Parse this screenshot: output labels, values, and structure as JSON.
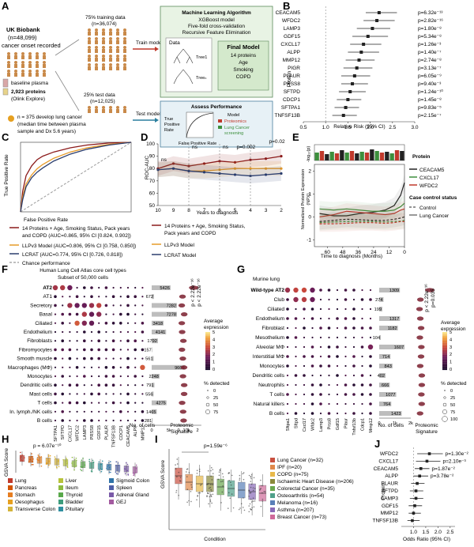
{
  "panelA": {
    "letter": "A",
    "cohort": [
      "UK Biobank",
      "(n=48,099)",
      "cancer onset recorded"
    ],
    "legend_baseline": "baseline plasma",
    "legend_proteins": [
      "2,923 proteins",
      "(Olink Explore)"
    ],
    "training": [
      "75% training data",
      "(n=36,074)"
    ],
    "testing": [
      "25% test data",
      "(n=12,025)"
    ],
    "train_label": "Train model",
    "test_label": "Test model",
    "ml_title": "Machine Learning Algorithm",
    "ml_lines": [
      "XGBoost model",
      "Five-fold cross-validation",
      "Recursive Feature Elimination"
    ],
    "data_label": "Data",
    "tree1": "Tree1",
    "treen": "Treeₙ",
    "final_title": "Final Model",
    "final_lines": [
      "14 proteins",
      "Age",
      "Smoking",
      "COPD"
    ],
    "perf_title": "Assess Performance",
    "perf_y": [
      "True",
      "Positive",
      "Rate"
    ],
    "perf_x": "False Positive Rate",
    "perf_legend_title": "Model",
    "perf_legend": [
      "Proteomics",
      "Lung Cancer",
      "screening"
    ],
    "footnote": [
      "n = 375 develop lung cancer",
      "(median time between plasma",
      "sample and Dx 5.6 years)"
    ]
  },
  "panelB": {
    "letter": "B",
    "ylabel": "Protein",
    "xlabel": "Relative Risk (95% CI)",
    "xticks": [
      "0.5",
      "1.0",
      "1.5",
      "2.0",
      "2.5",
      "3.0"
    ]
  },
  "panelC": {
    "letter": "C",
    "ylabel": "True Positive Rate",
    "xlabel": "False Positive Rate",
    "legend": [
      "14 Proteins + Age, Smoking Status, Pack years",
      "and COPD (AUC=0.865, 95% CI [0.824, 0.902])",
      "LLPv3 Model (AUC=0.806, 95% CI [0.758, 0.850])",
      "LCRAT (AUC=0.774, 95% CI [0.726, 0.818])",
      "Chance performance"
    ]
  },
  "panelD": {
    "letter": "D",
    "ylabel": "ROC-AUC",
    "xlabel": "Years to diagnosis",
    "xticks": [
      "10",
      "9",
      "8",
      "7",
      "6",
      "5",
      "4",
      "3",
      "2"
    ],
    "yticks": [
      "100",
      "90",
      "80",
      "70",
      "60",
      "50"
    ],
    "annotations": [
      "ns",
      "ns",
      "ns",
      "p=0.002",
      "p=0.02"
    ],
    "legend": [
      "14 Proteins + Age, Smoking Status,",
      "Pack years and COPD",
      "LLPv3 Model",
      "LCRAT Model"
    ]
  },
  "panelE": {
    "letter": "E",
    "ylabel": [
      "Normalized Protein Expression",
      "(NPX)"
    ],
    "xlabel": "Time to diagnosis (Months)",
    "xticks": [
      "60",
      "48",
      "36",
      "24",
      "12",
      "0"
    ],
    "yticks": [
      "2",
      "1",
      "0",
      "-1"
    ],
    "top_ylabel": "-log₁₀(p)",
    "legend_protein_title": "Protein",
    "proteins": [
      "CEACAM5",
      "CXCL17",
      "WFDC2"
    ],
    "legend_status_title": "Case control status",
    "statuses": [
      "Control",
      "Lung Cancer"
    ]
  },
  "panelF": {
    "letter": "F",
    "title": [
      "Human Lung Cell Atlas core cell types",
      "Subset of 50,000 cells"
    ],
    "cells": [
      "AT2",
      "AT1",
      "Secretory",
      "Basal",
      "Ciliated",
      "Endothelium",
      "Fibroblasts",
      "Fibromyocytes",
      "Smooth muscle",
      "Macrophages (MΦ)",
      "Monocytes",
      "Dendritic cells",
      "Mast cells",
      "T cells",
      "In. lymph./NK cells",
      "B cells"
    ],
    "genes": [
      "SFTPA1",
      "SFTPD",
      "CXCL17",
      "WFDC2",
      "LAMP3",
      "PRSS8",
      "GDF15",
      "PLAUR",
      "TNFSF13B",
      "CDCP1",
      "CEACAM5",
      "ALPP",
      "MMP12"
    ],
    "counts": [
      "5426",
      "672",
      "7282",
      "7278",
      "3418",
      "4141",
      "1792",
      "157",
      "561",
      "9666",
      "2248",
      "791",
      "556",
      "4275",
      "1465",
      "281"
    ],
    "counts_xticks": [
      "0",
      "5k",
      "10k"
    ],
    "counts_xlabel": "No. of cells",
    "sig_xlabel": [
      "Proteomic",
      "Signature"
    ],
    "sig_xticks": [
      "0",
      "1",
      "2"
    ],
    "pvals": [
      "p < 2.22e⁻¹⁶",
      "p < 2.22e⁻¹⁶"
    ],
    "legend_avg_title": [
      "Average",
      "expression"
    ],
    "legend_avg_ticks": [
      "5",
      "4",
      "3",
      "2",
      "1",
      "0"
    ],
    "legend_pct_title": "% detected",
    "legend_pct": [
      "0",
      "25",
      "50",
      "75"
    ]
  },
  "panelG": {
    "letter": "G",
    "title": "Murine lung",
    "cells": [
      "Wild-type AT2",
      "Club",
      "Ciliated",
      "Endothelium",
      "Fibroblast",
      "Mesothelium",
      "Alveolar MΦ",
      "Interstitial MΦ",
      "Monocytes",
      "Dendritic cells",
      "Neutrophils",
      "T cells",
      "Natural killers",
      "B cells"
    ],
    "genes": [
      "Sftpa1",
      "Sftpd",
      "Cxcl17",
      "Wfdc2",
      "Lamp3",
      "Prss8",
      "Gdf15",
      "Plaur",
      "Tnfsf13b",
      "Cdcp1",
      "Mmp12"
    ],
    "counts": [
      "1309",
      "274",
      "199",
      "1317",
      "1182",
      "104",
      "1607",
      "714",
      "843",
      "402",
      "666",
      "1077",
      "764",
      "1423"
    ],
    "counts_xticks": [
      "0",
      "1k",
      "2k"
    ],
    "counts_xlabel": "No. of cells",
    "sig_xlabel": [
      "Proteomic",
      "Signature"
    ],
    "pvals": [
      "p < 2.22e⁻¹⁶",
      "p=0.035"
    ],
    "legend_avg_title": [
      "Average",
      "expression"
    ],
    "legend_avg_ticks": [
      "5",
      "4",
      "3",
      "2",
      "1",
      "0"
    ],
    "legend_pct_title": "% detected",
    "legend_pct": [
      "0",
      "25",
      "50",
      "75",
      "100"
    ]
  },
  "panelH": {
    "letter": "H",
    "ylabel": "GSVA Score",
    "pval": "p = 6.07e⁻¹⁰",
    "tissues": [
      "Lung",
      "Pancreas",
      "Stomach",
      "Oesophagus",
      "Transverse Colon",
      "Liver",
      "Ileum",
      "Thyroid",
      "Bladder",
      "Pituitary",
      "Sigmoid Colon",
      "Spleen",
      "Adrenal Gland",
      "GEJ"
    ],
    "colors": [
      "#c0392b",
      "#d35400",
      "#e67e22",
      "#e6a020",
      "#d4b43a",
      "#b7c23a",
      "#8dbb3e",
      "#58a84a",
      "#3c9c7c",
      "#2e8fa0",
      "#2f73a8",
      "#4f5fa8",
      "#7a5aa8",
      "#a35aa0"
    ]
  },
  "panelI": {
    "letter": "I",
    "ylabel": "GSVA Score",
    "xlabel": "Condition",
    "pval": "p=1.59e⁻⁶",
    "conditions": [
      "Lung Cancer (n=32)",
      "IPF (n=20)",
      "COPD (n=75)",
      "Ischaemic Heart Disease (n=206)",
      "Colorectal Cancer (n=35)",
      "Osteoarthritis (n=54)",
      "Melanoma (n=16)",
      "Asthma (n=207)",
      "Breast Cancer (n=73)"
    ],
    "colors": [
      "#c9503f",
      "#e0884a",
      "#e8b94a",
      "#8a8a3a",
      "#6aa84f",
      "#4fa08a",
      "#5a7fb8",
      "#8a6ab8",
      "#d06a9a"
    ]
  },
  "panelJ": {
    "letter": "J",
    "ylabel": "Protein",
    "xlabel": "Odds Ratio (95% CI)",
    "xticks": [
      "1.0",
      "1.5",
      "2.0",
      "2.5"
    ],
    "yticks": [
      "0.5",
      "1.0",
      "1.5",
      "2.0"
    ]
  },
  "chart_data": [
    {
      "type": "scatter",
      "panel": "B",
      "xlabel": "Relative Risk (95% CI)",
      "ylabel": "Protein",
      "xlim": [
        0.5,
        3.0
      ],
      "series": [
        {
          "protein": "CEACAM5",
          "rr": 2.2,
          "ci": [
            1.9,
            2.6
          ],
          "p": "p=6.32e⁻¹³"
        },
        {
          "protein": "WFDC2",
          "rr": 2.15,
          "ci": [
            1.85,
            2.55
          ],
          "p": "p=2.82e⁻¹⁶"
        },
        {
          "protein": "LAMP3",
          "rr": 2.05,
          "ci": [
            1.7,
            2.45
          ],
          "p": "p=1.80e⁻⁸"
        },
        {
          "protein": "GDF15",
          "rr": 1.95,
          "ci": [
            1.6,
            2.4
          ],
          "p": "p=5.34e⁻⁸"
        },
        {
          "protein": "CXCL17",
          "rr": 1.85,
          "ci": [
            1.55,
            2.25
          ],
          "p": "p=1.26e⁻³"
        },
        {
          "protein": "ALPP",
          "rr": 1.8,
          "ci": [
            1.5,
            2.2
          ],
          "p": "p=1.40e⁻⁷"
        },
        {
          "protein": "MMP12",
          "rr": 1.75,
          "ci": [
            1.45,
            2.1
          ],
          "p": "p=2.74e⁻⁸"
        },
        {
          "protein": "PIGR",
          "rr": 1.7,
          "ci": [
            1.4,
            2.05
          ],
          "p": "p=3.13e⁻⁷"
        },
        {
          "protein": "PLAUR",
          "rr": 1.65,
          "ci": [
            1.35,
            2.0
          ],
          "p": "p=6.05e⁻⁹"
        },
        {
          "protein": "PRSS8",
          "rr": 1.6,
          "ci": [
            1.35,
            1.95
          ],
          "p": "p=9.40e⁻³"
        },
        {
          "protein": "SFTPD",
          "rr": 1.55,
          "ci": [
            1.3,
            1.9
          ],
          "p": "p=1.24e⁻¹⁰"
        },
        {
          "protein": "CDCP1",
          "rr": 1.5,
          "ci": [
            1.25,
            1.8
          ],
          "p": "p=1.45e⁻⁸"
        },
        {
          "protein": "SFTPA1",
          "rr": 1.45,
          "ci": [
            1.2,
            1.75
          ],
          "p": "p=9.83e⁻⁵"
        },
        {
          "protein": "TNFSF13B",
          "rr": 1.4,
          "ci": [
            1.15,
            1.7
          ],
          "p": "p=2.15e⁻⁷"
        }
      ]
    },
    {
      "type": "line",
      "panel": "C",
      "xlabel": "False Positive Rate",
      "ylabel": "True Positive Rate",
      "xlim": [
        0,
        1
      ],
      "ylim": [
        0,
        1
      ],
      "series": [
        {
          "name": "14 Proteins + Age, Smoking Status, Pack years and COPD",
          "color": "#8b1a1a",
          "x": [
            0,
            0.02,
            0.05,
            0.1,
            0.15,
            0.2,
            0.3,
            0.45,
            0.6,
            0.8,
            1.0
          ],
          "y": [
            0,
            0.3,
            0.52,
            0.66,
            0.75,
            0.8,
            0.86,
            0.92,
            0.96,
            0.99,
            1.0
          ]
        },
        {
          "name": "LLPv3 Model",
          "color": "#e69a28",
          "x": [
            0,
            0.02,
            0.05,
            0.1,
            0.15,
            0.2,
            0.3,
            0.45,
            0.6,
            0.8,
            1.0
          ],
          "y": [
            0,
            0.22,
            0.4,
            0.53,
            0.62,
            0.68,
            0.77,
            0.86,
            0.92,
            0.97,
            1.0
          ]
        },
        {
          "name": "LCRAT",
          "color": "#2a3d6e",
          "x": [
            0,
            0.02,
            0.05,
            0.1,
            0.15,
            0.2,
            0.3,
            0.45,
            0.6,
            0.8,
            1.0
          ],
          "y": [
            0,
            0.18,
            0.36,
            0.49,
            0.57,
            0.63,
            0.73,
            0.83,
            0.9,
            0.96,
            1.0
          ]
        }
      ]
    },
    {
      "type": "line",
      "panel": "D",
      "xlabel": "Years to diagnosis",
      "ylabel": "ROC-AUC",
      "ylim": [
        50,
        100
      ],
      "x": [
        10,
        9,
        8,
        7,
        6,
        5,
        4,
        3,
        2
      ],
      "series": [
        {
          "name": "14 Proteins + Age, Smoking Status, Pack years and COPD",
          "color": "#8b1a1a",
          "values": [
            80,
            84,
            82,
            84,
            86,
            85,
            87,
            88,
            90
          ]
        },
        {
          "name": "LLPv3 Model",
          "color": "#e69a28",
          "values": [
            79,
            80,
            78,
            78,
            79,
            80,
            80,
            80,
            80
          ]
        },
        {
          "name": "LCRAT Model",
          "color": "#2a3d6e",
          "values": [
            79,
            80,
            78,
            77,
            76,
            75,
            74,
            75,
            76
          ]
        }
      ]
    },
    {
      "type": "line",
      "panel": "E",
      "xlabel": "Time to diagnosis (Months)",
      "ylabel": "Normalized Protein Expression (NPX)",
      "xlim": [
        70,
        0
      ],
      "ylim": [
        -1.3,
        2.3
      ],
      "series": [
        {
          "name": "CEACAM5 Lung Cancer",
          "color": "#222222",
          "dash": false,
          "x": [
            66,
            55,
            45,
            35,
            25,
            15,
            8,
            3,
            0
          ],
          "y": [
            0.15,
            0.05,
            0.05,
            0.15,
            0.2,
            0.3,
            0.5,
            0.95,
            1.5
          ]
        },
        {
          "name": "CXCL17 Lung Cancer",
          "color": "#3d8f3d",
          "dash": false,
          "x": [
            66,
            55,
            45,
            35,
            25,
            15,
            8,
            3,
            0
          ],
          "y": [
            0.35,
            0.3,
            0.35,
            0.3,
            0.25,
            0.25,
            0.3,
            0.45,
            0.6
          ]
        },
        {
          "name": "WFDC2 Lung Cancer",
          "color": "#c0392b",
          "dash": false,
          "x": [
            66,
            55,
            45,
            35,
            25,
            15,
            8,
            3,
            0
          ],
          "y": [
            0.0,
            0.1,
            0.25,
            0.2,
            0.15,
            0.1,
            0.15,
            0.3,
            0.35
          ]
        },
        {
          "name": "CEACAM5 Control",
          "color": "#222222",
          "dash": true,
          "x": [
            66,
            55,
            45,
            35,
            25,
            15,
            8,
            3,
            0
          ],
          "y": [
            -0.2,
            -0.15,
            -0.1,
            -0.12,
            -0.15,
            -0.15,
            -0.1,
            -0.05,
            0.0
          ]
        },
        {
          "name": "CXCL17 Control",
          "color": "#3d8f3d",
          "dash": true,
          "x": [
            66,
            55,
            45,
            35,
            25,
            15,
            8,
            3,
            0
          ],
          "y": [
            -0.25,
            -0.22,
            -0.2,
            -0.2,
            -0.2,
            -0.22,
            -0.2,
            -0.18,
            -0.15
          ]
        },
        {
          "name": "WFDC2 Control",
          "color": "#c0392b",
          "dash": true,
          "x": [
            66,
            55,
            45,
            35,
            25,
            15,
            8,
            3,
            0
          ],
          "y": [
            -0.3,
            -0.3,
            -0.28,
            -0.25,
            -0.25,
            -0.28,
            -0.25,
            -0.2,
            -0.2
          ]
        }
      ]
    },
    {
      "type": "scatter",
      "panel": "J",
      "xlabel": "Odds Ratio (95% CI)",
      "ylabel": "Protein",
      "xlim": [
        0.5,
        2.7
      ],
      "series": [
        {
          "protein": "WFDC2",
          "or": 1.65,
          "ci": [
            1.15,
            2.2
          ],
          "p": "p=1.30e⁻²"
        },
        {
          "protein": "CXCL17",
          "or": 1.55,
          "ci": [
            1.1,
            2.1
          ],
          "p": "p=2.10e⁻³"
        },
        {
          "protein": "CEACAM5",
          "or": 1.3,
          "ci": [
            1.05,
            1.65
          ],
          "p": "p=1.87e⁻²"
        },
        {
          "protein": "ALPP",
          "or": 1.25,
          "ci": [
            1.0,
            1.6
          ],
          "p": "p=3.78e⁻²"
        },
        {
          "protein": "PLAUR",
          "or": 1.15,
          "ci": [
            0.9,
            1.45
          ],
          "p": ""
        },
        {
          "protein": "SFTPD",
          "or": 1.1,
          "ci": [
            0.85,
            1.4
          ],
          "p": ""
        },
        {
          "protein": "LAMP3",
          "or": 1.1,
          "ci": [
            0.85,
            1.4
          ],
          "p": ""
        },
        {
          "protein": "GDF15",
          "or": 1.05,
          "ci": [
            0.8,
            1.35
          ],
          "p": ""
        },
        {
          "protein": "MMP12",
          "or": 1.0,
          "ci": [
            0.8,
            1.3
          ],
          "p": ""
        },
        {
          "protein": "TNFSF13B",
          "or": 0.95,
          "ci": [
            0.75,
            1.25
          ],
          "p": ""
        }
      ]
    }
  ]
}
